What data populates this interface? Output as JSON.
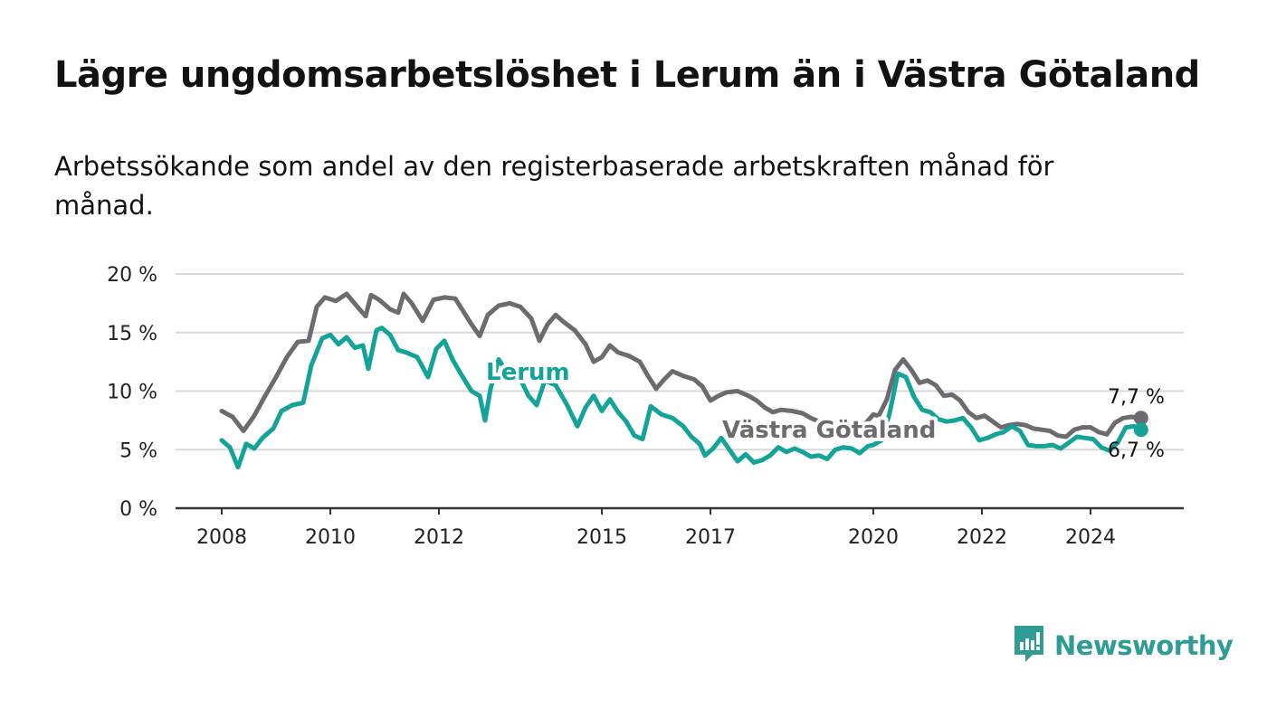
{
  "title": "Lägre ungdomsarbetslöshet i Lerum än i Västra Götaland",
  "subtitle": "Arbetssökande som andel av den registerbaserade arbetskraften månad för månad.",
  "brand": {
    "name": "Newsworthy",
    "color": "#2f9c96",
    "icon": "bar-chart-badge-icon"
  },
  "chart_data": {
    "type": "line",
    "ylim": [
      0,
      20
    ],
    "y_ticks": [
      {
        "value": 0,
        "label": "0 %"
      },
      {
        "value": 5,
        "label": "5 %"
      },
      {
        "value": 10,
        "label": "10 %"
      },
      {
        "value": 15,
        "label": "15 %"
      },
      {
        "value": 20,
        "label": "20 %"
      }
    ],
    "x_range": [
      2008,
      2025
    ],
    "x_ticks": [
      {
        "value": 2008,
        "label": "2008"
      },
      {
        "value": 2010,
        "label": "2010"
      },
      {
        "value": 2012,
        "label": "2012"
      },
      {
        "value": 2015,
        "label": "2015"
      },
      {
        "value": 2017,
        "label": "2017"
      },
      {
        "value": 2020,
        "label": "2020"
      },
      {
        "value": 2022,
        "label": "2022"
      },
      {
        "value": 2024,
        "label": "2024"
      }
    ],
    "grid": true,
    "series": [
      {
        "name": "Västra Götaland",
        "color": "#6d6a70",
        "end_label": "7,7 %",
        "points": [
          [
            2008.0,
            8.3
          ],
          [
            2008.2,
            7.8
          ],
          [
            2008.4,
            6.6
          ],
          [
            2008.6,
            7.9
          ],
          [
            2008.8,
            9.6
          ],
          [
            2009.0,
            11.2
          ],
          [
            2009.2,
            12.9
          ],
          [
            2009.4,
            14.2
          ],
          [
            2009.6,
            14.3
          ],
          [
            2009.75,
            17.2
          ],
          [
            2009.9,
            18.0
          ],
          [
            2010.1,
            17.7
          ],
          [
            2010.3,
            18.3
          ],
          [
            2010.5,
            17.2
          ],
          [
            2010.65,
            16.4
          ],
          [
            2010.75,
            18.2
          ],
          [
            2010.9,
            17.8
          ],
          [
            2011.1,
            17.0
          ],
          [
            2011.25,
            16.7
          ],
          [
            2011.35,
            18.3
          ],
          [
            2011.5,
            17.5
          ],
          [
            2011.7,
            16.0
          ],
          [
            2011.9,
            17.8
          ],
          [
            2012.1,
            18.0
          ],
          [
            2012.3,
            17.9
          ],
          [
            2012.45,
            16.8
          ],
          [
            2012.6,
            15.7
          ],
          [
            2012.75,
            14.7
          ],
          [
            2012.9,
            16.5
          ],
          [
            2013.1,
            17.3
          ],
          [
            2013.3,
            17.5
          ],
          [
            2013.5,
            17.2
          ],
          [
            2013.7,
            16.2
          ],
          [
            2013.85,
            14.3
          ],
          [
            2014.0,
            15.7
          ],
          [
            2014.15,
            16.5
          ],
          [
            2014.3,
            15.9
          ],
          [
            2014.5,
            15.2
          ],
          [
            2014.7,
            14.0
          ],
          [
            2014.85,
            12.5
          ],
          [
            2015.0,
            12.9
          ],
          [
            2015.15,
            13.9
          ],
          [
            2015.3,
            13.3
          ],
          [
            2015.5,
            13.0
          ],
          [
            2015.7,
            12.5
          ],
          [
            2015.85,
            11.3
          ],
          [
            2016.0,
            10.2
          ],
          [
            2016.15,
            11.0
          ],
          [
            2016.3,
            11.7
          ],
          [
            2016.5,
            11.3
          ],
          [
            2016.7,
            11.0
          ],
          [
            2016.85,
            10.4
          ],
          [
            2017.0,
            9.2
          ],
          [
            2017.15,
            9.6
          ],
          [
            2017.3,
            9.9
          ],
          [
            2017.5,
            10.0
          ],
          [
            2017.7,
            9.6
          ],
          [
            2017.85,
            9.2
          ],
          [
            2018.0,
            8.6
          ],
          [
            2018.15,
            8.2
          ],
          [
            2018.3,
            8.4
          ],
          [
            2018.5,
            8.3
          ],
          [
            2018.7,
            8.1
          ],
          [
            2018.85,
            7.7
          ],
          [
            2019.0,
            7.4
          ],
          [
            2019.15,
            7.1
          ],
          [
            2019.3,
            7.2
          ],
          [
            2019.5,
            7.1
          ],
          [
            2019.7,
            7.3
          ],
          [
            2019.85,
            7.2
          ],
          [
            2020.0,
            8.0
          ],
          [
            2020.1,
            7.9
          ],
          [
            2020.25,
            9.3
          ],
          [
            2020.4,
            11.8
          ],
          [
            2020.55,
            12.7
          ],
          [
            2020.7,
            11.8
          ],
          [
            2020.85,
            10.7
          ],
          [
            2021.0,
            10.9
          ],
          [
            2021.15,
            10.5
          ],
          [
            2021.3,
            9.6
          ],
          [
            2021.45,
            9.7
          ],
          [
            2021.6,
            9.2
          ],
          [
            2021.75,
            8.2
          ],
          [
            2021.9,
            7.7
          ],
          [
            2022.05,
            7.9
          ],
          [
            2022.2,
            7.4
          ],
          [
            2022.35,
            6.9
          ],
          [
            2022.5,
            7.1
          ],
          [
            2022.65,
            7.2
          ],
          [
            2022.8,
            7.1
          ],
          [
            2022.95,
            6.8
          ],
          [
            2023.1,
            6.7
          ],
          [
            2023.25,
            6.6
          ],
          [
            2023.4,
            6.2
          ],
          [
            2023.55,
            6.1
          ],
          [
            2023.7,
            6.7
          ],
          [
            2023.85,
            6.9
          ],
          [
            2024.0,
            6.9
          ],
          [
            2024.15,
            6.5
          ],
          [
            2024.3,
            6.3
          ],
          [
            2024.45,
            7.3
          ],
          [
            2024.6,
            7.7
          ],
          [
            2024.75,
            7.8
          ],
          [
            2024.93,
            7.7
          ]
        ]
      },
      {
        "name": "Lerum",
        "color": "#13a398",
        "end_label": "6,7 %",
        "points": [
          [
            2008.0,
            5.8
          ],
          [
            2008.15,
            5.2
          ],
          [
            2008.3,
            3.5
          ],
          [
            2008.45,
            5.5
          ],
          [
            2008.6,
            5.1
          ],
          [
            2008.75,
            6.0
          ],
          [
            2008.95,
            6.8
          ],
          [
            2009.1,
            8.3
          ],
          [
            2009.3,
            8.8
          ],
          [
            2009.5,
            9.0
          ],
          [
            2009.65,
            12.2
          ],
          [
            2009.85,
            14.5
          ],
          [
            2010.0,
            14.8
          ],
          [
            2010.15,
            14.0
          ],
          [
            2010.3,
            14.6
          ],
          [
            2010.45,
            13.7
          ],
          [
            2010.6,
            13.9
          ],
          [
            2010.7,
            11.9
          ],
          [
            2010.85,
            15.2
          ],
          [
            2010.95,
            15.4
          ],
          [
            2011.1,
            14.8
          ],
          [
            2011.25,
            13.5
          ],
          [
            2011.4,
            13.3
          ],
          [
            2011.6,
            12.9
          ],
          [
            2011.8,
            11.2
          ],
          [
            2011.95,
            13.6
          ],
          [
            2012.1,
            14.3
          ],
          [
            2012.25,
            12.7
          ],
          [
            2012.4,
            11.5
          ],
          [
            2012.6,
            10.0
          ],
          [
            2012.75,
            9.6
          ],
          [
            2012.85,
            7.5
          ],
          [
            2012.95,
            10.2
          ],
          [
            2013.1,
            12.7
          ],
          [
            2013.3,
            11.3
          ],
          [
            2013.5,
            11.0
          ],
          [
            2013.65,
            9.6
          ],
          [
            2013.8,
            8.8
          ],
          [
            2013.95,
            10.9
          ],
          [
            2014.15,
            10.5
          ],
          [
            2014.35,
            8.9
          ],
          [
            2014.55,
            7.0
          ],
          [
            2014.7,
            8.6
          ],
          [
            2014.85,
            9.6
          ],
          [
            2015.0,
            8.3
          ],
          [
            2015.15,
            9.3
          ],
          [
            2015.3,
            8.2
          ],
          [
            2015.45,
            7.4
          ],
          [
            2015.6,
            6.2
          ],
          [
            2015.75,
            5.9
          ],
          [
            2015.9,
            8.7
          ],
          [
            2016.1,
            8.0
          ],
          [
            2016.3,
            7.7
          ],
          [
            2016.5,
            7.0
          ],
          [
            2016.65,
            6.1
          ],
          [
            2016.8,
            5.5
          ],
          [
            2016.9,
            4.5
          ],
          [
            2017.05,
            5.1
          ],
          [
            2017.2,
            6.0
          ],
          [
            2017.35,
            5.0
          ],
          [
            2017.5,
            4.0
          ],
          [
            2017.65,
            4.6
          ],
          [
            2017.8,
            3.9
          ],
          [
            2017.95,
            4.1
          ],
          [
            2018.1,
            4.5
          ],
          [
            2018.25,
            5.2
          ],
          [
            2018.4,
            4.8
          ],
          [
            2018.55,
            5.1
          ],
          [
            2018.7,
            4.8
          ],
          [
            2018.85,
            4.4
          ],
          [
            2019.0,
            4.5
          ],
          [
            2019.15,
            4.2
          ],
          [
            2019.3,
            5.0
          ],
          [
            2019.45,
            5.2
          ],
          [
            2019.6,
            5.1
          ],
          [
            2019.75,
            4.7
          ],
          [
            2019.9,
            5.3
          ],
          [
            2020.0,
            5.4
          ],
          [
            2020.15,
            5.8
          ],
          [
            2020.3,
            8.1
          ],
          [
            2020.45,
            11.5
          ],
          [
            2020.6,
            11.2
          ],
          [
            2020.75,
            9.5
          ],
          [
            2020.9,
            8.4
          ],
          [
            2021.05,
            8.2
          ],
          [
            2021.2,
            7.6
          ],
          [
            2021.35,
            7.4
          ],
          [
            2021.5,
            7.5
          ],
          [
            2021.65,
            7.7
          ],
          [
            2021.8,
            6.9
          ],
          [
            2021.95,
            5.8
          ],
          [
            2022.1,
            6.0
          ],
          [
            2022.25,
            6.3
          ],
          [
            2022.4,
            6.5
          ],
          [
            2022.55,
            7.0
          ],
          [
            2022.7,
            6.6
          ],
          [
            2022.85,
            5.4
          ],
          [
            2023.0,
            5.3
          ],
          [
            2023.15,
            5.3
          ],
          [
            2023.3,
            5.4
          ],
          [
            2023.45,
            5.1
          ],
          [
            2023.6,
            5.6
          ],
          [
            2023.75,
            6.1
          ],
          [
            2023.9,
            6.0
          ],
          [
            2024.05,
            5.9
          ],
          [
            2024.2,
            5.2
          ],
          [
            2024.35,
            4.9
          ],
          [
            2024.5,
            5.6
          ],
          [
            2024.65,
            6.9
          ],
          [
            2024.8,
            7.0
          ],
          [
            2024.93,
            6.7
          ]
        ]
      }
    ]
  }
}
